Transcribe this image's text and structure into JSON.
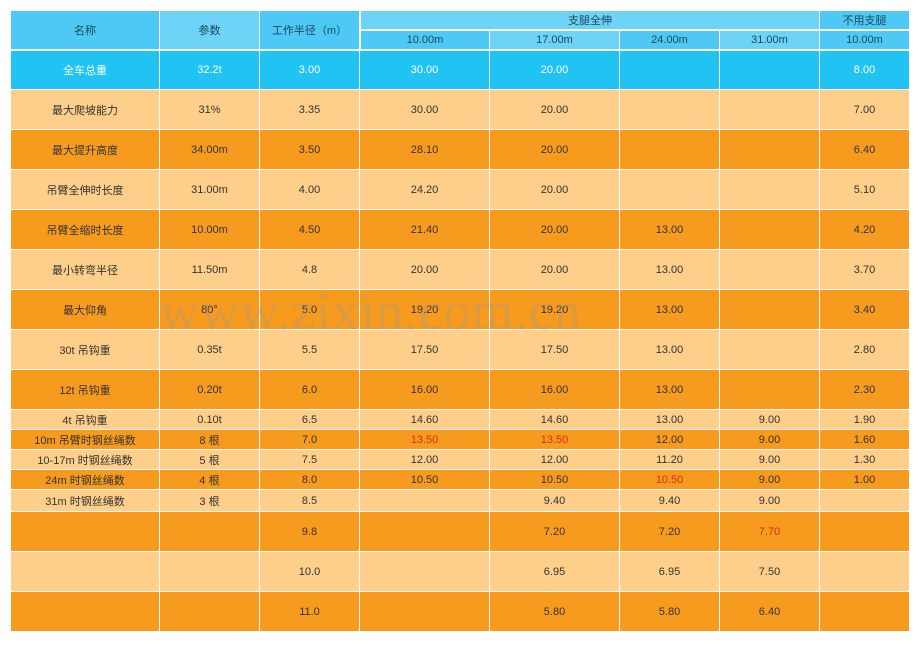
{
  "watermark": "www.zixin.com.cn",
  "header": {
    "name": "名称",
    "param": "参数",
    "radius": "工作半径（m）",
    "full_ext": "支腿全伸",
    "no_leg": "不用支腿",
    "cols": {
      "c4": "10.00m",
      "c5": "17.00m",
      "c6": "24.00m",
      "c7": "31.00m",
      "c8": "10.00m"
    }
  },
  "rows": [
    {
      "h": "tall",
      "shade": "cyanRow",
      "name": "全车总重",
      "param": "32.2t",
      "r": "3.00",
      "v": [
        "30.00",
        "20.00",
        "",
        "",
        "8.00"
      ],
      "redIdx": []
    },
    {
      "h": "tall",
      "shade": "L",
      "name": "最大爬坡能力",
      "param": "31%",
      "r": "3.35",
      "v": [
        "30.00",
        "20.00",
        "",
        "",
        "7.00"
      ],
      "redIdx": []
    },
    {
      "h": "tall",
      "shade": "D",
      "name": "最大提升高度",
      "param": "34.00m",
      "r": "3.50",
      "v": [
        "28.10",
        "20.00",
        "",
        "",
        "6.40"
      ],
      "redIdx": []
    },
    {
      "h": "tall",
      "shade": "L",
      "name": "吊臂全伸时长度",
      "param": "31.00m",
      "r": "4.00",
      "v": [
        "24.20",
        "20.00",
        "",
        "",
        "5.10"
      ],
      "redIdx": []
    },
    {
      "h": "tall",
      "shade": "D",
      "name": "吊臂全缩时长度",
      "param": "10.00m",
      "r": "4.50",
      "v": [
        "21.40",
        "20.00",
        "13.00",
        "",
        "4.20"
      ],
      "redIdx": []
    },
    {
      "h": "tall",
      "shade": "L",
      "name": "最小转弯半径",
      "param": "11.50m",
      "r": "4.8",
      "v": [
        "20.00",
        "20.00",
        "13.00",
        "",
        "3.70"
      ],
      "redIdx": []
    },
    {
      "h": "tall",
      "shade": "D",
      "name": "最大仰角",
      "param": "80°",
      "r": "5.0",
      "v": [
        "19.20",
        "19.20",
        "13.00",
        "",
        "3.40"
      ],
      "redIdx": []
    },
    {
      "h": "tall",
      "shade": "L",
      "name": "30t 吊钩重",
      "param": "0.35t",
      "r": "5.5",
      "v": [
        "17.50",
        "17.50",
        "13.00",
        "",
        "2.80"
      ],
      "redIdx": []
    },
    {
      "h": "tall",
      "shade": "D",
      "name": "12t 吊钩重",
      "param": "0.20t",
      "r": "6.0",
      "v": [
        "16.00",
        "16.00",
        "13.00",
        "",
        "2.30"
      ],
      "redIdx": []
    },
    {
      "h": "med",
      "shade": "L",
      "name": "4t 吊钩重",
      "param": "0.10t",
      "r": "6.5",
      "v": [
        "14.60",
        "14.60",
        "13.00",
        "9.00",
        "1.90"
      ],
      "redIdx": []
    },
    {
      "h": "med",
      "shade": "D",
      "name": "10m 吊臂时钢丝绳数",
      "param": "8 根",
      "r": "7.0",
      "v": [
        "13.50",
        "13.50",
        "12.00",
        "9.00",
        "1.60"
      ],
      "redIdx": [
        0,
        1
      ]
    },
    {
      "h": "med",
      "shade": "L",
      "name": "10-17m 时钢丝绳数",
      "param": "5 根",
      "r": "7.5",
      "v": [
        "12.00",
        "12.00",
        "11.20",
        "9.00",
        "1.30"
      ],
      "redIdx": []
    },
    {
      "h": "med",
      "shade": "D",
      "name": "24m 时钢丝绳数",
      "param": "4 根",
      "r": "8.0",
      "v": [
        "10.50",
        "10.50",
        "10.50",
        "9.00",
        "1.00"
      ],
      "redIdx": [
        2
      ]
    },
    {
      "h": "short",
      "shade": "L",
      "name": "31m 时钢丝绳数",
      "param": "3 根",
      "r": "8.5",
      "v": [
        "",
        "9.40",
        "9.40",
        "9.00",
        ""
      ],
      "redIdx": []
    },
    {
      "h": "tall",
      "shade": "D",
      "name": "",
      "param": "",
      "r": "9.8",
      "v": [
        "",
        "7.20",
        "7.20",
        "7.70",
        ""
      ],
      "redIdx": [
        3
      ]
    },
    {
      "h": "tall",
      "shade": "L",
      "name": "",
      "param": "",
      "r": "10.0",
      "v": [
        "",
        "6.95",
        "6.95",
        "7.50",
        ""
      ],
      "redIdx": []
    },
    {
      "h": "tall",
      "shade": "D",
      "name": "",
      "param": "",
      "r": "11.0",
      "v": [
        "",
        "5.80",
        "5.80",
        "6.40",
        ""
      ],
      "redIdx": []
    }
  ],
  "colors": {
    "blue1": "#4ec9f5",
    "blue2": "#6dd3f7",
    "cyan": "#21c3f3",
    "orangeL": "#fdcf8a",
    "orangeD": "#f79b1e",
    "red": "#d92b1f"
  }
}
